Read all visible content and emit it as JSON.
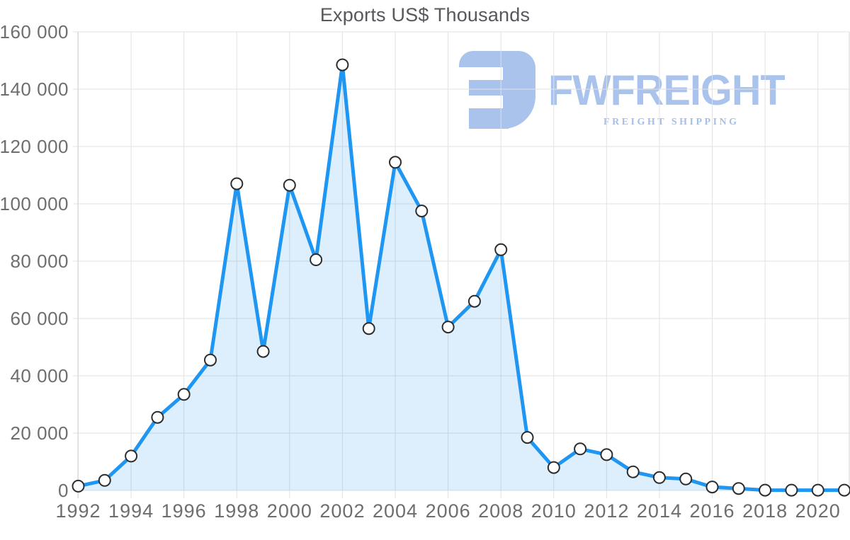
{
  "title": "Exports US$ Thousands",
  "logo": {
    "brand": "FWFREIGHT",
    "subtitle": "FREIGHT SHIPPING",
    "color": "#a9c3ec"
  },
  "chart_data": {
    "type": "area",
    "title": "Exports US$ Thousands",
    "x": [
      1992,
      1993,
      1994,
      1995,
      1996,
      1997,
      1998,
      1999,
      2000,
      2001,
      2002,
      2003,
      2004,
      2005,
      2006,
      2007,
      2008,
      2009,
      2010,
      2011,
      2012,
      2013,
      2014,
      2015,
      2016,
      2017,
      2018,
      2019,
      2020,
      2021
    ],
    "values": [
      1500,
      3500,
      12000,
      25500,
      33500,
      45500,
      107000,
      48500,
      106500,
      80500,
      148500,
      56500,
      114500,
      97500,
      57000,
      66000,
      84000,
      18500,
      8000,
      14500,
      12500,
      6500,
      4500,
      4000,
      1200,
      700,
      100,
      100,
      100,
      100
    ],
    "xlabel": "",
    "ylabel": "",
    "ylim": [
      0,
      160000
    ],
    "xlim": [
      1992,
      2021
    ],
    "y_ticks": [
      0,
      20000,
      40000,
      60000,
      80000,
      100000,
      120000,
      140000,
      160000
    ],
    "y_tick_labels": [
      "0",
      "20 000",
      "40 000",
      "60 000",
      "80 000",
      "100 000",
      "120 000",
      "140 000",
      "160 000"
    ],
    "x_ticks": [
      1992,
      1994,
      1996,
      1998,
      2000,
      2002,
      2004,
      2006,
      2008,
      2010,
      2012,
      2014,
      2016,
      2018,
      2020
    ],
    "x_tick_labels": [
      "1992",
      "1994",
      "1996",
      "1998",
      "2000",
      "2002",
      "2004",
      "2006",
      "2008",
      "2010",
      "2012",
      "2014",
      "2016",
      "2018",
      "2020"
    ],
    "grid": true,
    "legend": false,
    "marker": "circle",
    "colors": {
      "line": "#1e96f2",
      "area_fill": "#1e96f2",
      "area_opacity": "0.15",
      "marker_fill": "#ffffff",
      "marker_stroke": "#2d2d2d",
      "grid": "#e2e2e2",
      "axis": "#d6d6d6",
      "tick_text": "#6e6e6e",
      "title_text": "#56585b"
    }
  }
}
